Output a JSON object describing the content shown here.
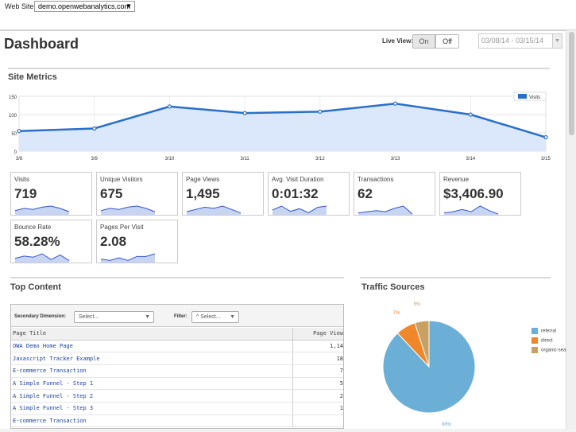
{
  "topbar": {
    "website_label": "Web Site:",
    "website_value": "demo.openwebanalytics.com",
    "website_caret": "▼"
  },
  "page": {
    "title": "Dashboard"
  },
  "liveview": {
    "label": "Live View:",
    "on": "On",
    "off": "Off"
  },
  "daterange": {
    "value": "03/08/14 - 03/15/14",
    "caret": "▼"
  },
  "site_metrics": {
    "title": "Site Metrics"
  },
  "chart_data": {
    "type": "area",
    "categories": [
      "3/8",
      "3/9",
      "3/10",
      "3/11",
      "3/12",
      "3/13",
      "3/14",
      "3/15"
    ],
    "series": [
      {
        "name": "Visits",
        "values": [
          55,
          62,
          122,
          104,
          108,
          130,
          100,
          38
        ],
        "color": "#2a6fc9"
      }
    ],
    "yticks": [
      0,
      50,
      100,
      150
    ],
    "ylim": [
      0,
      150
    ],
    "legend": "top-right",
    "grid": true
  },
  "metrics": [
    {
      "label": "Visits",
      "value": "719",
      "spark": [
        3,
        5,
        4,
        6,
        7,
        5,
        2
      ]
    },
    {
      "label": "Unique Visitors",
      "value": "675",
      "spark": [
        3,
        5,
        4,
        6,
        7,
        5,
        2
      ]
    },
    {
      "label": "Page Views",
      "value": "1,495",
      "spark": [
        2,
        4,
        6,
        5,
        7,
        4,
        1
      ]
    },
    {
      "label": "Avg. Visit Duration",
      "value": "0:01:32",
      "spark": [
        3,
        6,
        2,
        4,
        1,
        5,
        6
      ]
    },
    {
      "label": "Transactions",
      "value": "62",
      "spark": [
        1,
        2,
        3,
        2,
        5,
        7,
        0
      ]
    },
    {
      "label": "Revenue",
      "value": "$3,406.90",
      "spark": [
        1,
        2,
        4,
        2,
        7,
        3,
        0
      ]
    },
    {
      "label": "Bounce Rate",
      "value": "58.28%",
      "spark": [
        3,
        5,
        4,
        7,
        2,
        6,
        1
      ]
    },
    {
      "label": "Pages Per Visit",
      "value": "2.08",
      "spark": [
        2,
        1,
        3,
        1,
        4,
        4,
        6
      ]
    }
  ],
  "top_content": {
    "title": "Top Content",
    "secondary_label": "Secondary Dimension:",
    "secondary_value": "Select...",
    "filter_label": "Filter:",
    "filter_value": "^ Select...",
    "caret": "▼",
    "columns": [
      "Page Title",
      "Page View"
    ],
    "rows": [
      {
        "title": "OWA Demo Home Page",
        "views": "1,14"
      },
      {
        "title": "Javascript Tracker Example",
        "views": "18"
      },
      {
        "title": "E-commerce Transaction",
        "views": "7"
      },
      {
        "title": "A Simple Funnel - Step 1",
        "views": "5"
      },
      {
        "title": "A Simple Funnel - Step 2",
        "views": "2"
      },
      {
        "title": "A Simple Funnel - Step 3",
        "views": "1"
      },
      {
        "title": "E-commerce Transaction",
        "views": ""
      }
    ]
  },
  "traffic_sources": {
    "title": "Traffic Sources",
    "slices": [
      {
        "name": "referral",
        "value": 88,
        "label": "88%",
        "color": "#6baed6"
      },
      {
        "name": "direct",
        "value": 7,
        "label": "7%",
        "color": "#f0882b"
      },
      {
        "name": "organic-sea",
        "value": 5,
        "label": "5%",
        "color": "#c8a063"
      }
    ]
  }
}
